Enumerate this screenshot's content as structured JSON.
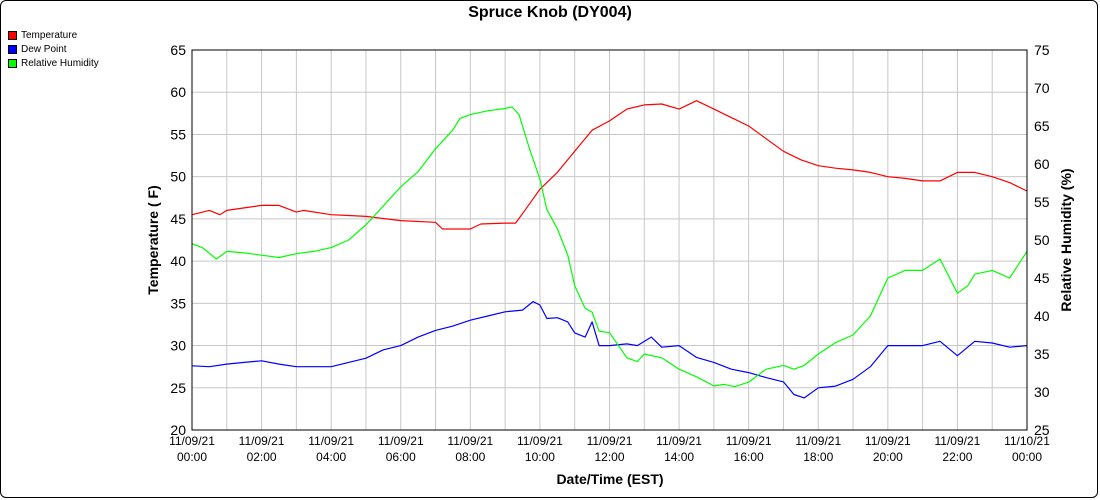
{
  "chart_data": {
    "type": "line",
    "title": "Spruce Knob (DY004)",
    "xlabel": "Date/Time (EST)",
    "ylabel": "Temperature ( F)",
    "y2label": "Relative Humidity (%)",
    "ylim": [
      20,
      65
    ],
    "y2lim": [
      25,
      75
    ],
    "yticks": [
      "65",
      "60",
      "55",
      "50",
      "45",
      "40",
      "35",
      "30",
      "25",
      "20"
    ],
    "y2ticks": [
      "75",
      "70",
      "65",
      "60",
      "55",
      "50",
      "45",
      "40",
      "35",
      "30",
      "25"
    ],
    "xlim_hours": [
      0,
      24
    ],
    "xticks": [
      {
        "date": "11/09/21",
        "time": "00:00"
      },
      {
        "date": "11/09/21",
        "time": "02:00"
      },
      {
        "date": "11/09/21",
        "time": "04:00"
      },
      {
        "date": "11/09/21",
        "time": "06:00"
      },
      {
        "date": "11/09/21",
        "time": "08:00"
      },
      {
        "date": "11/09/21",
        "time": "10:00"
      },
      {
        "date": "11/09/21",
        "time": "12:00"
      },
      {
        "date": "11/09/21",
        "time": "14:00"
      },
      {
        "date": "11/09/21",
        "time": "16:00"
      },
      {
        "date": "11/09/21",
        "time": "18:00"
      },
      {
        "date": "11/09/21",
        "time": "20:00"
      },
      {
        "date": "11/09/21",
        "time": "22:00"
      },
      {
        "date": "11/10/21",
        "time": "00:00"
      }
    ],
    "legend_position": "top-left",
    "grid": true,
    "series": [
      {
        "name": "Temperature",
        "color": "#ff0000",
        "axis": "left",
        "points": [
          [
            0,
            45.5
          ],
          [
            0.5,
            46
          ],
          [
            0.8,
            45.5
          ],
          [
            1,
            46
          ],
          [
            1.5,
            46.3
          ],
          [
            2,
            46.6
          ],
          [
            2.5,
            46.6
          ],
          [
            3,
            45.8
          ],
          [
            3.2,
            46
          ],
          [
            4,
            45.5
          ],
          [
            4.5,
            45.4
          ],
          [
            5,
            45.3
          ],
          [
            6,
            44.8
          ],
          [
            7,
            44.6
          ],
          [
            7.2,
            43.8
          ],
          [
            8,
            43.8
          ],
          [
            8.3,
            44.4
          ],
          [
            9,
            44.5
          ],
          [
            9.3,
            44.5
          ],
          [
            9.6,
            46.2
          ],
          [
            10,
            48.5
          ],
          [
            10.5,
            50.5
          ],
          [
            11,
            53
          ],
          [
            11.5,
            55.5
          ],
          [
            12,
            56.6
          ],
          [
            12.5,
            58
          ],
          [
            13,
            58.5
          ],
          [
            13.5,
            58.6
          ],
          [
            14,
            58
          ],
          [
            14.5,
            59
          ],
          [
            15,
            58
          ],
          [
            15.5,
            57
          ],
          [
            16,
            56
          ],
          [
            16.5,
            54.5
          ],
          [
            17,
            53
          ],
          [
            17.5,
            52
          ],
          [
            18,
            51.3
          ],
          [
            18.5,
            51
          ],
          [
            19,
            50.8
          ],
          [
            19.5,
            50.5
          ],
          [
            20,
            50
          ],
          [
            20.5,
            49.8
          ],
          [
            21,
            49.5
          ],
          [
            21.5,
            49.5
          ],
          [
            22,
            50.5
          ],
          [
            22.5,
            50.5
          ],
          [
            23,
            50
          ],
          [
            23.5,
            49.3
          ],
          [
            24,
            48.3
          ]
        ]
      },
      {
        "name": "Dew Point",
        "color": "#0000ff",
        "axis": "left",
        "points": [
          [
            0,
            27.6
          ],
          [
            0.5,
            27.5
          ],
          [
            1,
            27.8
          ],
          [
            1.5,
            28
          ],
          [
            2,
            28.2
          ],
          [
            2.5,
            27.8
          ],
          [
            3,
            27.5
          ],
          [
            4,
            27.5
          ],
          [
            4.5,
            28
          ],
          [
            5,
            28.5
          ],
          [
            5.5,
            29.5
          ],
          [
            6,
            30
          ],
          [
            6.5,
            31
          ],
          [
            7,
            31.8
          ],
          [
            7.5,
            32.3
          ],
          [
            8,
            33
          ],
          [
            8.5,
            33.5
          ],
          [
            9,
            34
          ],
          [
            9.5,
            34.2
          ],
          [
            9.8,
            35.2
          ],
          [
            10,
            34.8
          ],
          [
            10.2,
            33.2
          ],
          [
            10.5,
            33.3
          ],
          [
            10.8,
            32.8
          ],
          [
            11,
            31.5
          ],
          [
            11.3,
            31
          ],
          [
            11.5,
            32.8
          ],
          [
            11.7,
            30
          ],
          [
            12,
            30
          ],
          [
            12.5,
            30.2
          ],
          [
            12.8,
            30
          ],
          [
            13.2,
            31
          ],
          [
            13.5,
            29.8
          ],
          [
            14,
            30
          ],
          [
            14.5,
            28.6
          ],
          [
            15,
            28
          ],
          [
            15.5,
            27.2
          ],
          [
            16,
            26.8
          ],
          [
            16.5,
            26.2
          ],
          [
            17,
            25.7
          ],
          [
            17.3,
            24.2
          ],
          [
            17.6,
            23.8
          ],
          [
            18,
            25
          ],
          [
            18.5,
            25.2
          ],
          [
            19,
            26
          ],
          [
            19.5,
            27.5
          ],
          [
            20,
            30
          ],
          [
            20.5,
            30
          ],
          [
            21,
            30
          ],
          [
            21.5,
            30.5
          ],
          [
            22,
            28.8
          ],
          [
            22.5,
            30.5
          ],
          [
            23,
            30.3
          ],
          [
            23.5,
            29.8
          ],
          [
            24,
            30
          ]
        ]
      },
      {
        "name": "Relative Humidity",
        "color": "#00ff00",
        "axis": "right",
        "points": [
          [
            0,
            49.5
          ],
          [
            0.3,
            49
          ],
          [
            0.7,
            47.5
          ],
          [
            1,
            48.5
          ],
          [
            1.5,
            48.3
          ],
          [
            2,
            48
          ],
          [
            2.5,
            47.7
          ],
          [
            3,
            48.2
          ],
          [
            3.5,
            48.5
          ],
          [
            4,
            49
          ],
          [
            4.5,
            50
          ],
          [
            5,
            52
          ],
          [
            5.5,
            54.5
          ],
          [
            6,
            57
          ],
          [
            6.5,
            59
          ],
          [
            7,
            62
          ],
          [
            7.5,
            64.5
          ],
          [
            7.7,
            66
          ],
          [
            8,
            66.5
          ],
          [
            8.5,
            67
          ],
          [
            9,
            67.3
          ],
          [
            9.2,
            67.5
          ],
          [
            9.4,
            66.5
          ],
          [
            9.7,
            62
          ],
          [
            10,
            58
          ],
          [
            10.2,
            54
          ],
          [
            10.5,
            51.5
          ],
          [
            10.8,
            48
          ],
          [
            11,
            44
          ],
          [
            11.3,
            41
          ],
          [
            11.5,
            40.5
          ],
          [
            11.7,
            38
          ],
          [
            12,
            37.8
          ],
          [
            12.5,
            34.5
          ],
          [
            12.8,
            34
          ],
          [
            13,
            35
          ],
          [
            13.5,
            34.5
          ],
          [
            14,
            33
          ],
          [
            14.5,
            32
          ],
          [
            15,
            30.8
          ],
          [
            15.3,
            31
          ],
          [
            15.6,
            30.7
          ],
          [
            16,
            31.3
          ],
          [
            16.5,
            33
          ],
          [
            17,
            33.5
          ],
          [
            17.3,
            33
          ],
          [
            17.6,
            33.5
          ],
          [
            18,
            35
          ],
          [
            18.5,
            36.5
          ],
          [
            19,
            37.5
          ],
          [
            19.5,
            40
          ],
          [
            20,
            45
          ],
          [
            20.5,
            46
          ],
          [
            21,
            46
          ],
          [
            21.5,
            47.5
          ],
          [
            22,
            43
          ],
          [
            22.3,
            44
          ],
          [
            22.5,
            45.5
          ],
          [
            23,
            46
          ],
          [
            23.5,
            45
          ],
          [
            24,
            48.5
          ]
        ]
      }
    ]
  }
}
